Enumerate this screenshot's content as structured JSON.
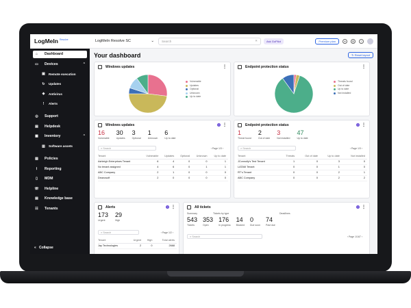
{
  "topbar": {
    "logo": "LogMeIn",
    "logo_badge": "Resolve",
    "org": "LogMeIn Resolve SC",
    "search_placeholder": "Search",
    "ask_label": "Ask GoPilot",
    "premium_label": "Premium plan"
  },
  "sidebar": {
    "items": [
      {
        "label": "Dashboard",
        "icon": "home-icon"
      },
      {
        "label": "Devices",
        "icon": "monitor-icon"
      },
      {
        "label": "Remote execution",
        "icon": "terminal-icon"
      },
      {
        "label": "Updates",
        "icon": "refresh-icon"
      },
      {
        "label": "Antivirus",
        "icon": "shield-icon"
      },
      {
        "label": "Alerts",
        "icon": "alert-icon"
      },
      {
        "label": "Support",
        "icon": "support-icon"
      },
      {
        "label": "Helpdesk",
        "icon": "ticket-icon"
      },
      {
        "label": "Inventory",
        "icon": "box-icon"
      },
      {
        "label": "Software assets",
        "icon": "apps-icon"
      },
      {
        "label": "Policies",
        "icon": "policy-icon"
      },
      {
        "label": "Reporting",
        "icon": "chart-icon"
      },
      {
        "label": "MDM",
        "icon": "phone-icon"
      },
      {
        "label": "Helpline",
        "icon": "headset-icon"
      },
      {
        "label": "Knowledge base",
        "icon": "book-icon"
      },
      {
        "label": "Tenants",
        "icon": "users-icon"
      }
    ],
    "collapse_label": "Collapse"
  },
  "dashboard": {
    "title": "Your dashboard",
    "reset_label": "Reset layout"
  },
  "win_updates_chart": {
    "title": "Windows updates",
    "legend": [
      "Vulnerable",
      "Updates",
      "Optional",
      "Unknown",
      "Up to date"
    ],
    "colors": [
      "#e8718f",
      "#c9b85a",
      "#3c6fb8",
      "#a6d1ef",
      "#4cae8a"
    ],
    "values": [
      27,
      48,
      5,
      10,
      10
    ]
  },
  "endpoint_chart": {
    "title": "Endpoint protection status",
    "legend": [
      "Threats found",
      "Out of date",
      "Up to date",
      "Not installed"
    ],
    "colors": [
      "#e8718f",
      "#c9b85a",
      "#4cae8a",
      "#3c6fb8"
    ],
    "values": [
      2,
      3,
      85,
      10
    ]
  },
  "win_updates_table": {
    "title": "Windows updates",
    "stats": [
      {
        "num": "16",
        "lbl": "Vulnerable",
        "color": "#c62f42"
      },
      {
        "num": "30",
        "lbl": "Updates",
        "color": "#111111"
      },
      {
        "num": "3",
        "lbl": "Optional",
        "color": "#111111"
      },
      {
        "num": "1",
        "lbl": "Unknown",
        "color": "#111111"
      },
      {
        "num": "6",
        "lbl": "Up to date",
        "color": "#111111"
      }
    ],
    "search": "Search",
    "pager": "Page 1/3",
    "headers": [
      "Tenant",
      "Vulnerable",
      "Updates",
      "Optional",
      "Unknown",
      "Up to date"
    ],
    "rows": [
      [
        "Ashleigh Enterprises Tenant",
        "6",
        "4",
        "0",
        "0",
        "1"
      ],
      [
        "No tenant assigned",
        "4",
        "6",
        "0",
        "1",
        "1"
      ],
      [
        "ABC Company",
        "2",
        "1",
        "0",
        "0",
        "0"
      ],
      [
        "Deanosoft",
        "2",
        "0",
        "0",
        "0",
        "0"
      ]
    ]
  },
  "endpoint_table": {
    "title": "Endpoint protection status",
    "stats": [
      {
        "num": "1",
        "lbl": "Threat found",
        "color": "#c62f42"
      },
      {
        "num": "2",
        "lbl": "Out of date",
        "color": "#111111"
      },
      {
        "num": "3",
        "lbl": "Not installed",
        "color": "#c62f42"
      },
      {
        "num": "47",
        "lbl": "Up to date",
        "color": "#2e8a5c"
      }
    ],
    "search": "Search",
    "pager": "Page 1/3",
    "headers": [
      "Tenant",
      "Threats",
      "Out of date",
      "Up to date",
      "Not installed"
    ],
    "rows": [
      [
        "JConnolly's Test Tenant",
        "1",
        "0",
        "3",
        "0"
      ],
      [
        "LATAM Tenant",
        "0",
        "0",
        "1",
        "0"
      ],
      [
        "RT's Tenant",
        "0",
        "0",
        "2",
        "1"
      ],
      [
        "ABC Company",
        "0",
        "0",
        "2",
        "2"
      ]
    ]
  },
  "alerts": {
    "title": "Alerts",
    "stats": [
      {
        "num": "173",
        "lbl": "Urgent"
      },
      {
        "num": "29",
        "lbl": "High"
      }
    ],
    "search": "Search",
    "pager": "Page 1/2",
    "headers": [
      "Tenant",
      "Urgent",
      "High",
      "Total alerts"
    ],
    "row": [
      "Jay Technologies",
      "2",
      "0",
      "2668"
    ]
  },
  "tickets": {
    "title": "All tickets",
    "summary_label": "Summary",
    "by_type_label": "Tickets by type",
    "deadlines_label": "Deadlines",
    "stats": [
      {
        "num": "543",
        "lbl": "Tickets"
      },
      {
        "num": "353",
        "lbl": "Open"
      },
      {
        "num": "176",
        "lbl": "In progress"
      },
      {
        "num": "14",
        "lbl": "Blocked"
      },
      {
        "num": "0",
        "lbl": "Due soon"
      },
      {
        "num": "74",
        "lbl": "Past due"
      }
    ],
    "search": "Search",
    "pager": "Page 1/167"
  }
}
